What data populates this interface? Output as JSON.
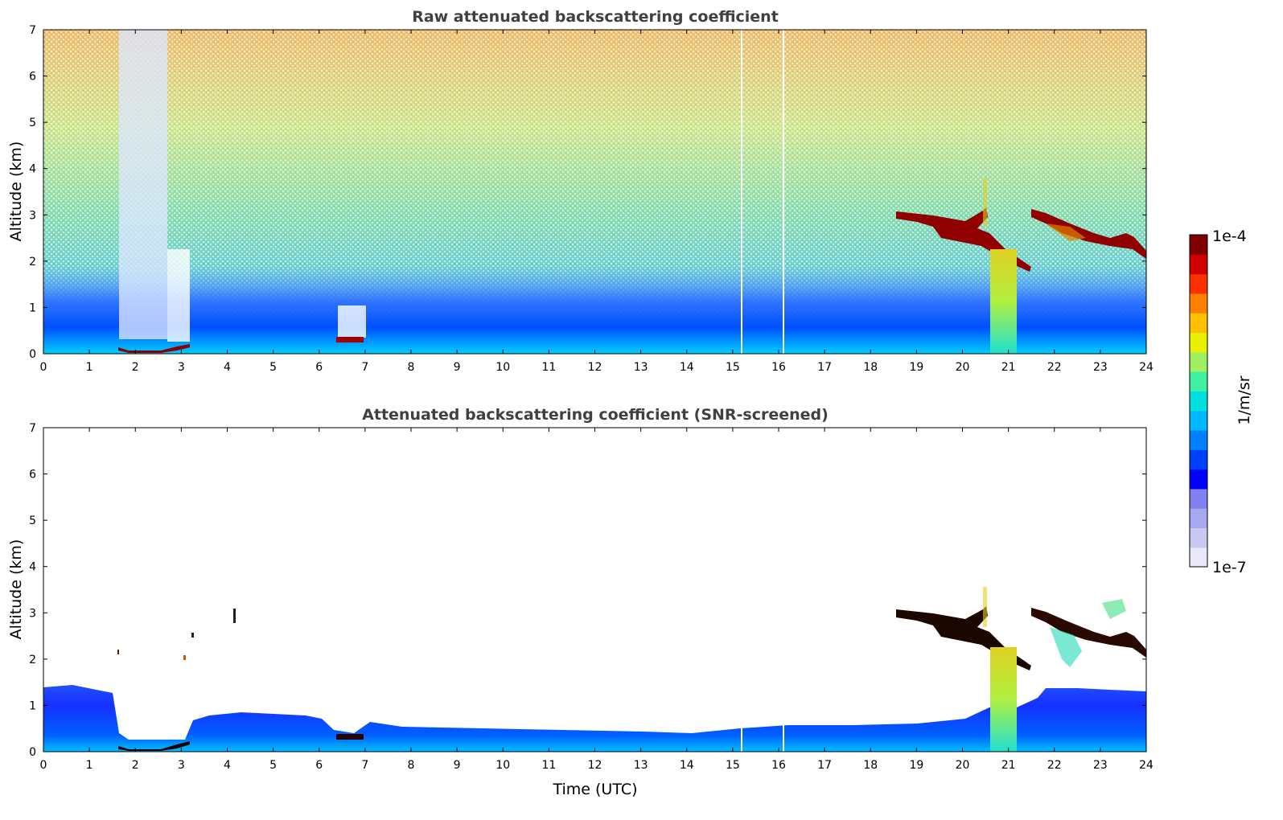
{
  "chart_data": [
    {
      "type": "heatmap",
      "title": "Raw attenuated backscattering coefficient",
      "xlabel": "",
      "ylabel": "Altitude (km)",
      "xlim": [
        0,
        24
      ],
      "ylim": [
        0,
        7
      ],
      "xticks": [
        "0",
        "1",
        "2",
        "3",
        "4",
        "5",
        "6",
        "7",
        "8",
        "9",
        "10",
        "11",
        "12",
        "13",
        "14",
        "15",
        "16",
        "17",
        "18",
        "19",
        "20",
        "21",
        "22",
        "23",
        "24"
      ],
      "yticks": [
        "0",
        "1",
        "2",
        "3",
        "4",
        "5",
        "6",
        "7"
      ],
      "features": [
        {
          "name": "boundary layer aerosol",
          "time_range": [
            0,
            24
          ],
          "altitude_top": 0.6
        },
        {
          "name": "low cloud",
          "time_range": [
            1.6,
            3.1
          ],
          "altitude": 0.15
        },
        {
          "name": "low cloud",
          "time_range": [
            6.4,
            6.9
          ],
          "altitude": 0.35
        },
        {
          "name": "mid-level cloud",
          "time_range": [
            18.5,
            21.5
          ],
          "altitude_range": [
            1.8,
            3.1
          ]
        },
        {
          "name": "mid-level cloud",
          "time_range": [
            21.5,
            24
          ],
          "altitude_range": [
            2.0,
            3.0
          ]
        },
        {
          "name": "precipitation",
          "time_range": [
            20.6,
            21.1
          ],
          "altitude_range": [
            0,
            2.2
          ]
        }
      ]
    },
    {
      "type": "heatmap",
      "title": "Attenuated backscattering coefficient (SNR-screened)",
      "xlabel": "Time (UTC)",
      "ylabel": "Altitude (km)",
      "xlim": [
        0,
        24
      ],
      "ylim": [
        0,
        7
      ],
      "xticks": [
        "0",
        "1",
        "2",
        "3",
        "4",
        "5",
        "6",
        "7",
        "8",
        "9",
        "10",
        "11",
        "12",
        "13",
        "14",
        "15",
        "16",
        "17",
        "18",
        "19",
        "20",
        "21",
        "22",
        "23",
        "24"
      ],
      "yticks": [
        "0",
        "1",
        "2",
        "3",
        "4",
        "5",
        "6",
        "7"
      ],
      "features": [
        {
          "name": "boundary layer aerosol",
          "time_range": [
            0,
            24
          ],
          "altitude_top": 1.3
        },
        {
          "name": "low cloud",
          "time_range": [
            1.6,
            3.1
          ],
          "altitude": 0.15
        },
        {
          "name": "low cloud",
          "time_range": [
            6.4,
            6.9
          ],
          "altitude": 0.35
        },
        {
          "name": "mid-level cloud",
          "time_range": [
            18.5,
            24
          ],
          "altitude_range": [
            1.8,
            3.3
          ]
        },
        {
          "name": "precipitation",
          "time_range": [
            20.6,
            21.1
          ],
          "altitude_range": [
            0,
            2.2
          ]
        }
      ]
    }
  ],
  "colorbar": {
    "max_label": "1e-4",
    "min_label": "1e-7",
    "unit_label": "1/m/sr",
    "colors": [
      "#e8e8f8",
      "#c8c8f0",
      "#a8a8f0",
      "#8080f0",
      "#0000ff",
      "#0040ff",
      "#0080ff",
      "#00b8ff",
      "#00e0e0",
      "#40f0a0",
      "#a0f060",
      "#e8f000",
      "#ffc000",
      "#ff8000",
      "#ff3000",
      "#d00000",
      "#800000"
    ]
  }
}
